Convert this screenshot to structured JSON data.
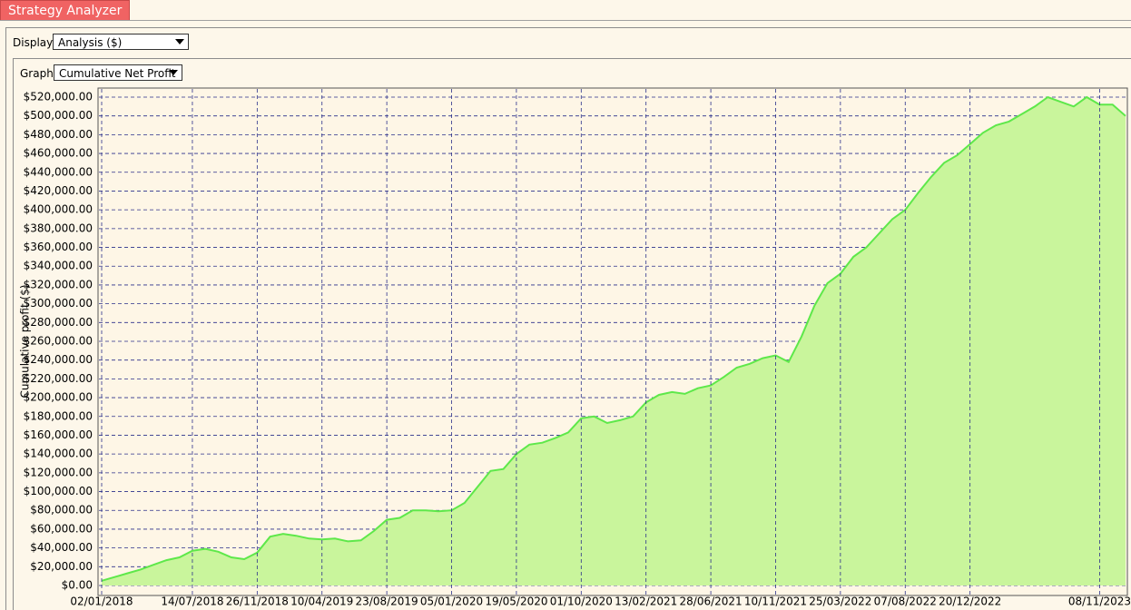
{
  "header": {
    "title": "Strategy Analyzer"
  },
  "controls": {
    "display_label": "Display",
    "display_value": "Analysis ($)",
    "graph_label": "Graph",
    "graph_value": "Cumulative Net Profit"
  },
  "chart_data": {
    "type": "area",
    "y_label": "Cumulative profit ($)",
    "color": "#5ee84a",
    "fill_color": "#c9f59c",
    "grid": true,
    "grid_color": "#2a2f8a",
    "categories": [
      "02/01/2018",
      null,
      null,
      null,
      null,
      null,
      null,
      "14/07/2018",
      null,
      null,
      null,
      null,
      "26/11/2018",
      null,
      null,
      null,
      null,
      "10/04/2019",
      null,
      null,
      null,
      null,
      "23/08/2019",
      null,
      null,
      null,
      null,
      "05/01/2020",
      null,
      null,
      null,
      null,
      "19/05/2020",
      null,
      null,
      null,
      null,
      "01/10/2020",
      null,
      null,
      null,
      null,
      "13/02/2021",
      null,
      null,
      null,
      null,
      "28/06/2021",
      null,
      null,
      null,
      null,
      "10/11/2021",
      null,
      null,
      null,
      null,
      "25/03/2022",
      null,
      null,
      null,
      null,
      "07/08/2022",
      null,
      null,
      null,
      null,
      "20/12/2022",
      null,
      null,
      null,
      null,
      null,
      null,
      null,
      null,
      null,
      "08/11/2023",
      null,
      null
    ],
    "values": [
      5000,
      9000,
      13000,
      17000,
      22000,
      27000,
      30000,
      37000,
      39000,
      36000,
      30000,
      28000,
      35000,
      52000,
      55000,
      53000,
      50000,
      49000,
      50000,
      47000,
      48000,
      58000,
      70000,
      72000,
      80000,
      80000,
      79000,
      80000,
      88000,
      105000,
      122000,
      124000,
      140000,
      150000,
      152000,
      157000,
      163000,
      178000,
      180000,
      173000,
      176000,
      180000,
      195000,
      203000,
      206000,
      204000,
      210000,
      213000,
      222000,
      232000,
      236000,
      242000,
      245000,
      238000,
      265000,
      298000,
      322000,
      332000,
      350000,
      360000,
      375000,
      390000,
      400000,
      418000,
      435000,
      450000,
      458000,
      470000,
      482000,
      490000,
      494000,
      502000,
      510000,
      520000,
      515000,
      510000,
      520000,
      512000,
      512000,
      500000
    ],
    "ylim": [
      0,
      520000
    ],
    "yticks": [
      {
        "value": 0,
        "label": "$0.00"
      },
      {
        "value": 20000,
        "label": "$20,000.00"
      },
      {
        "value": 40000,
        "label": "$40,000.00"
      },
      {
        "value": 60000,
        "label": "$60,000.00"
      },
      {
        "value": 80000,
        "label": "$80,000.00"
      },
      {
        "value": 100000,
        "label": "$100,000.00"
      },
      {
        "value": 120000,
        "label": "$120,000.00"
      },
      {
        "value": 140000,
        "label": "$140,000.00"
      },
      {
        "value": 160000,
        "label": "$160,000.00"
      },
      {
        "value": 180000,
        "label": "$180,000.00"
      },
      {
        "value": 200000,
        "label": "$200,000.00"
      },
      {
        "value": 220000,
        "label": "$220,000.00"
      },
      {
        "value": 240000,
        "label": "$240,000.00"
      },
      {
        "value": 260000,
        "label": "$260,000.00"
      },
      {
        "value": 280000,
        "label": "$280,000.00"
      },
      {
        "value": 300000,
        "label": "$300,000.00"
      },
      {
        "value": 320000,
        "label": "$320,000.00"
      },
      {
        "value": 340000,
        "label": "$340,000.00"
      },
      {
        "value": 360000,
        "label": "$360,000.00"
      },
      {
        "value": 380000,
        "label": "$380,000.00"
      },
      {
        "value": 400000,
        "label": "$400,000.00"
      },
      {
        "value": 420000,
        "label": "$420,000.00"
      },
      {
        "value": 440000,
        "label": "$440,000.00"
      },
      {
        "value": 460000,
        "label": "$460,000.00"
      },
      {
        "value": 480000,
        "label": "$480,000.00"
      },
      {
        "value": 500000,
        "label": "$500,000.00"
      },
      {
        "value": 520000,
        "label": "$520,000.00"
      }
    ]
  }
}
